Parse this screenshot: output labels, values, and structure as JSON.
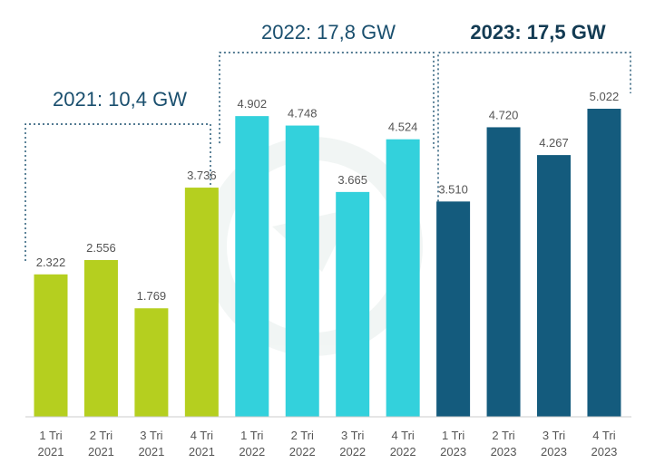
{
  "chart_data": {
    "type": "bar",
    "categories": [
      {
        "line1": "1 Tri",
        "line2": "2021"
      },
      {
        "line1": "2 Tri",
        "line2": "2021"
      },
      {
        "line1": "3 Tri",
        "line2": "2021"
      },
      {
        "line1": "4 Tri",
        "line2": "2021"
      },
      {
        "line1": "1 Tri",
        "line2": "2022"
      },
      {
        "line1": "2 Tri",
        "line2": "2022"
      },
      {
        "line1": "3 Tri",
        "line2": "2022"
      },
      {
        "line1": "4 Tri",
        "line2": "2022"
      },
      {
        "line1": "1 Tri",
        "line2": "2023"
      },
      {
        "line1": "2 Tri",
        "line2": "2023"
      },
      {
        "line1": "3 Tri",
        "line2": "2023"
      },
      {
        "line1": "4 Tri",
        "line2": "2023"
      }
    ],
    "values": [
      2322,
      2556,
      1769,
      3736,
      4902,
      4748,
      3665,
      4524,
      3510,
      4720,
      4267,
      5022
    ],
    "value_labels": [
      "2.322",
      "2.556",
      "1.769",
      "3.736",
      "4.902",
      "4.748",
      "3.665",
      "4.524",
      "3.510",
      "4.720",
      "4.267",
      "5.022"
    ],
    "groups": [
      {
        "label": "2021: 10,4 GW",
        "start": 0,
        "end": 3,
        "color": "#b5cf1f",
        "bold": false
      },
      {
        "label": "2022: 17,8 GW",
        "start": 4,
        "end": 7,
        "color": "#33d1dc",
        "bold": false
      },
      {
        "label": "2023: 17,5 GW",
        "start": 8,
        "end": 11,
        "color": "#145b7d",
        "bold": true
      }
    ],
    "ylim": [
      0,
      5022
    ],
    "grid": false,
    "legend": "none"
  }
}
